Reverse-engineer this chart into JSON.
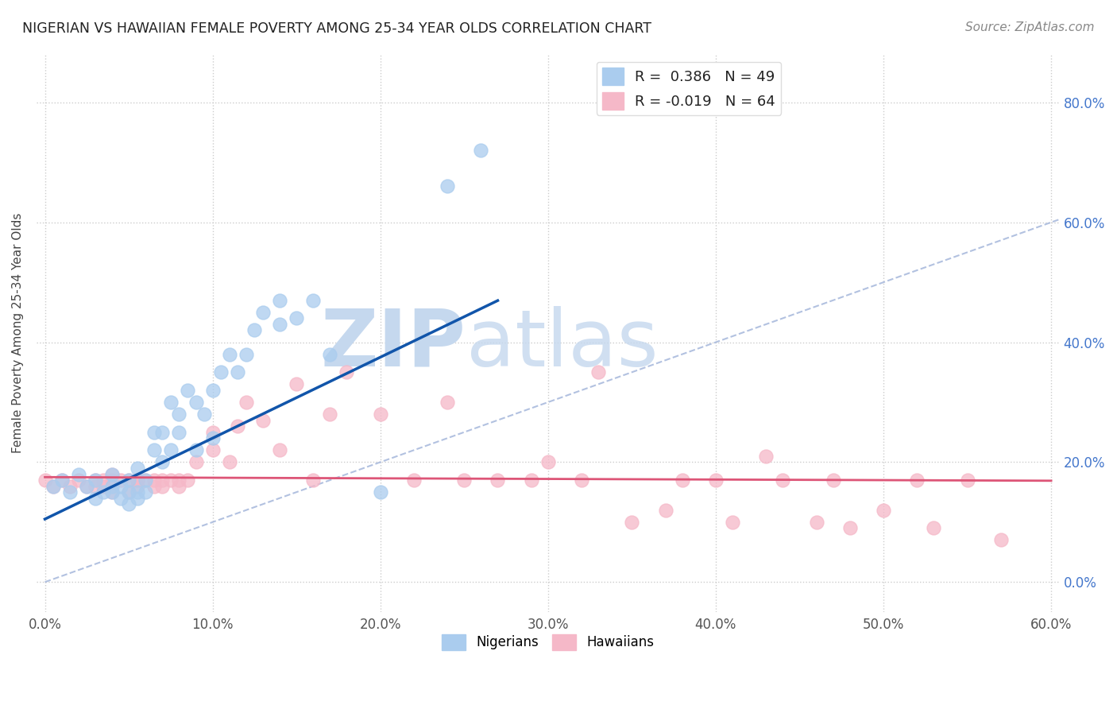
{
  "title": "NIGERIAN VS HAWAIIAN FEMALE POVERTY AMONG 25-34 YEAR OLDS CORRELATION CHART",
  "source": "Source: ZipAtlas.com",
  "ylabel": "Female Poverty Among 25-34 Year Olds",
  "xlim": [
    -0.005,
    0.605
  ],
  "ylim": [
    -0.05,
    0.88
  ],
  "xticks": [
    0.0,
    0.1,
    0.2,
    0.3,
    0.4,
    0.5,
    0.6
  ],
  "yticks": [
    0.0,
    0.2,
    0.4,
    0.6,
    0.8
  ],
  "background_color": "#ffffff",
  "grid_color": "#cccccc",
  "watermark_zip": "ZIP",
  "watermark_atlas": "atlas",
  "watermark_color": "#c8daf0",
  "nigerian_color": "#aaccee",
  "hawaiian_color": "#f5b8c8",
  "nigerian_R": 0.386,
  "nigerian_N": 49,
  "hawaiian_R": -0.019,
  "hawaiian_N": 64,
  "nigerian_line_color": "#1155aa",
  "hawaiian_line_color": "#dd5577",
  "diagonal_color": "#aabbdd",
  "nigerian_x": [
    0.005,
    0.01,
    0.015,
    0.02,
    0.025,
    0.03,
    0.03,
    0.035,
    0.04,
    0.04,
    0.04,
    0.045,
    0.045,
    0.05,
    0.05,
    0.05,
    0.055,
    0.055,
    0.055,
    0.06,
    0.06,
    0.065,
    0.065,
    0.07,
    0.07,
    0.075,
    0.075,
    0.08,
    0.08,
    0.085,
    0.09,
    0.09,
    0.095,
    0.1,
    0.1,
    0.105,
    0.11,
    0.115,
    0.12,
    0.125,
    0.13,
    0.14,
    0.14,
    0.15,
    0.16,
    0.17,
    0.2,
    0.24,
    0.26
  ],
  "nigerian_y": [
    0.16,
    0.17,
    0.15,
    0.18,
    0.16,
    0.14,
    0.17,
    0.15,
    0.15,
    0.16,
    0.18,
    0.14,
    0.16,
    0.13,
    0.15,
    0.17,
    0.14,
    0.15,
    0.19,
    0.15,
    0.17,
    0.22,
    0.25,
    0.2,
    0.25,
    0.22,
    0.3,
    0.25,
    0.28,
    0.32,
    0.22,
    0.3,
    0.28,
    0.24,
    0.32,
    0.35,
    0.38,
    0.35,
    0.38,
    0.42,
    0.45,
    0.43,
    0.47,
    0.44,
    0.47,
    0.38,
    0.15,
    0.66,
    0.72
  ],
  "hawaiian_x": [
    0.0,
    0.005,
    0.01,
    0.015,
    0.02,
    0.025,
    0.03,
    0.03,
    0.035,
    0.035,
    0.04,
    0.04,
    0.04,
    0.045,
    0.05,
    0.05,
    0.055,
    0.055,
    0.055,
    0.06,
    0.065,
    0.065,
    0.07,
    0.07,
    0.075,
    0.08,
    0.08,
    0.085,
    0.09,
    0.1,
    0.1,
    0.11,
    0.115,
    0.12,
    0.13,
    0.14,
    0.15,
    0.16,
    0.17,
    0.18,
    0.2,
    0.22,
    0.24,
    0.25,
    0.27,
    0.29,
    0.3,
    0.32,
    0.33,
    0.35,
    0.37,
    0.38,
    0.4,
    0.41,
    0.43,
    0.44,
    0.46,
    0.47,
    0.48,
    0.5,
    0.52,
    0.53,
    0.55,
    0.57
  ],
  "hawaiian_y": [
    0.17,
    0.16,
    0.17,
    0.16,
    0.17,
    0.16,
    0.17,
    0.16,
    0.17,
    0.16,
    0.15,
    0.17,
    0.18,
    0.17,
    0.15,
    0.17,
    0.16,
    0.17,
    0.17,
    0.17,
    0.16,
    0.17,
    0.16,
    0.17,
    0.17,
    0.16,
    0.17,
    0.17,
    0.2,
    0.22,
    0.25,
    0.2,
    0.26,
    0.3,
    0.27,
    0.22,
    0.33,
    0.17,
    0.28,
    0.35,
    0.28,
    0.17,
    0.3,
    0.17,
    0.17,
    0.17,
    0.2,
    0.17,
    0.35,
    0.1,
    0.12,
    0.17,
    0.17,
    0.1,
    0.21,
    0.17,
    0.1,
    0.17,
    0.09,
    0.12,
    0.17,
    0.09,
    0.17,
    0.07
  ]
}
